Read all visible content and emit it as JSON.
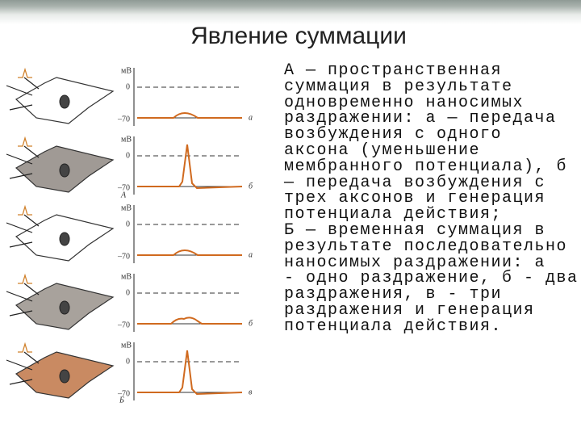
{
  "header": {
    "title": "Явление суммации"
  },
  "figure": {
    "panels": [
      {
        "unit": "мВ",
        "zero": "0",
        "minus70": "–70",
        "letter": "а"
      },
      {
        "unit": "мВ",
        "zero": "0",
        "minus70": "–70",
        "letter": "б"
      },
      {
        "unit": "мВ",
        "zero": "0",
        "minus70": "–70",
        "letter": "а"
      },
      {
        "unit": "мВ",
        "zero": "0",
        "minus70": "–70",
        "letter": "б"
      },
      {
        "unit": "мВ",
        "zero": "0",
        "minus70": "–70",
        "letter": "в"
      }
    ],
    "group_a": "А",
    "group_b": "Б"
  },
  "text": {
    "paragraphs": [
      [
        "А — пространственная",
        "суммация в результате",
        "одновременно наносимых",
        "раздражении: а — передача",
        "возбуждения с одного",
        "аксона (уменьшение",
        "мембранного потенциала), б",
        "— передача возбуждения с",
        "трех аксонов и генерация",
        "потенциала действия;"
      ],
      [
        "Б — временная суммация в",
        "результате последовательно",
        "наносимых раздражении: а",
        "- одно раздражение, б - два",
        "раздражения, в - три",
        "раздражения и генерация",
        "потенциала действия."
      ]
    ]
  }
}
